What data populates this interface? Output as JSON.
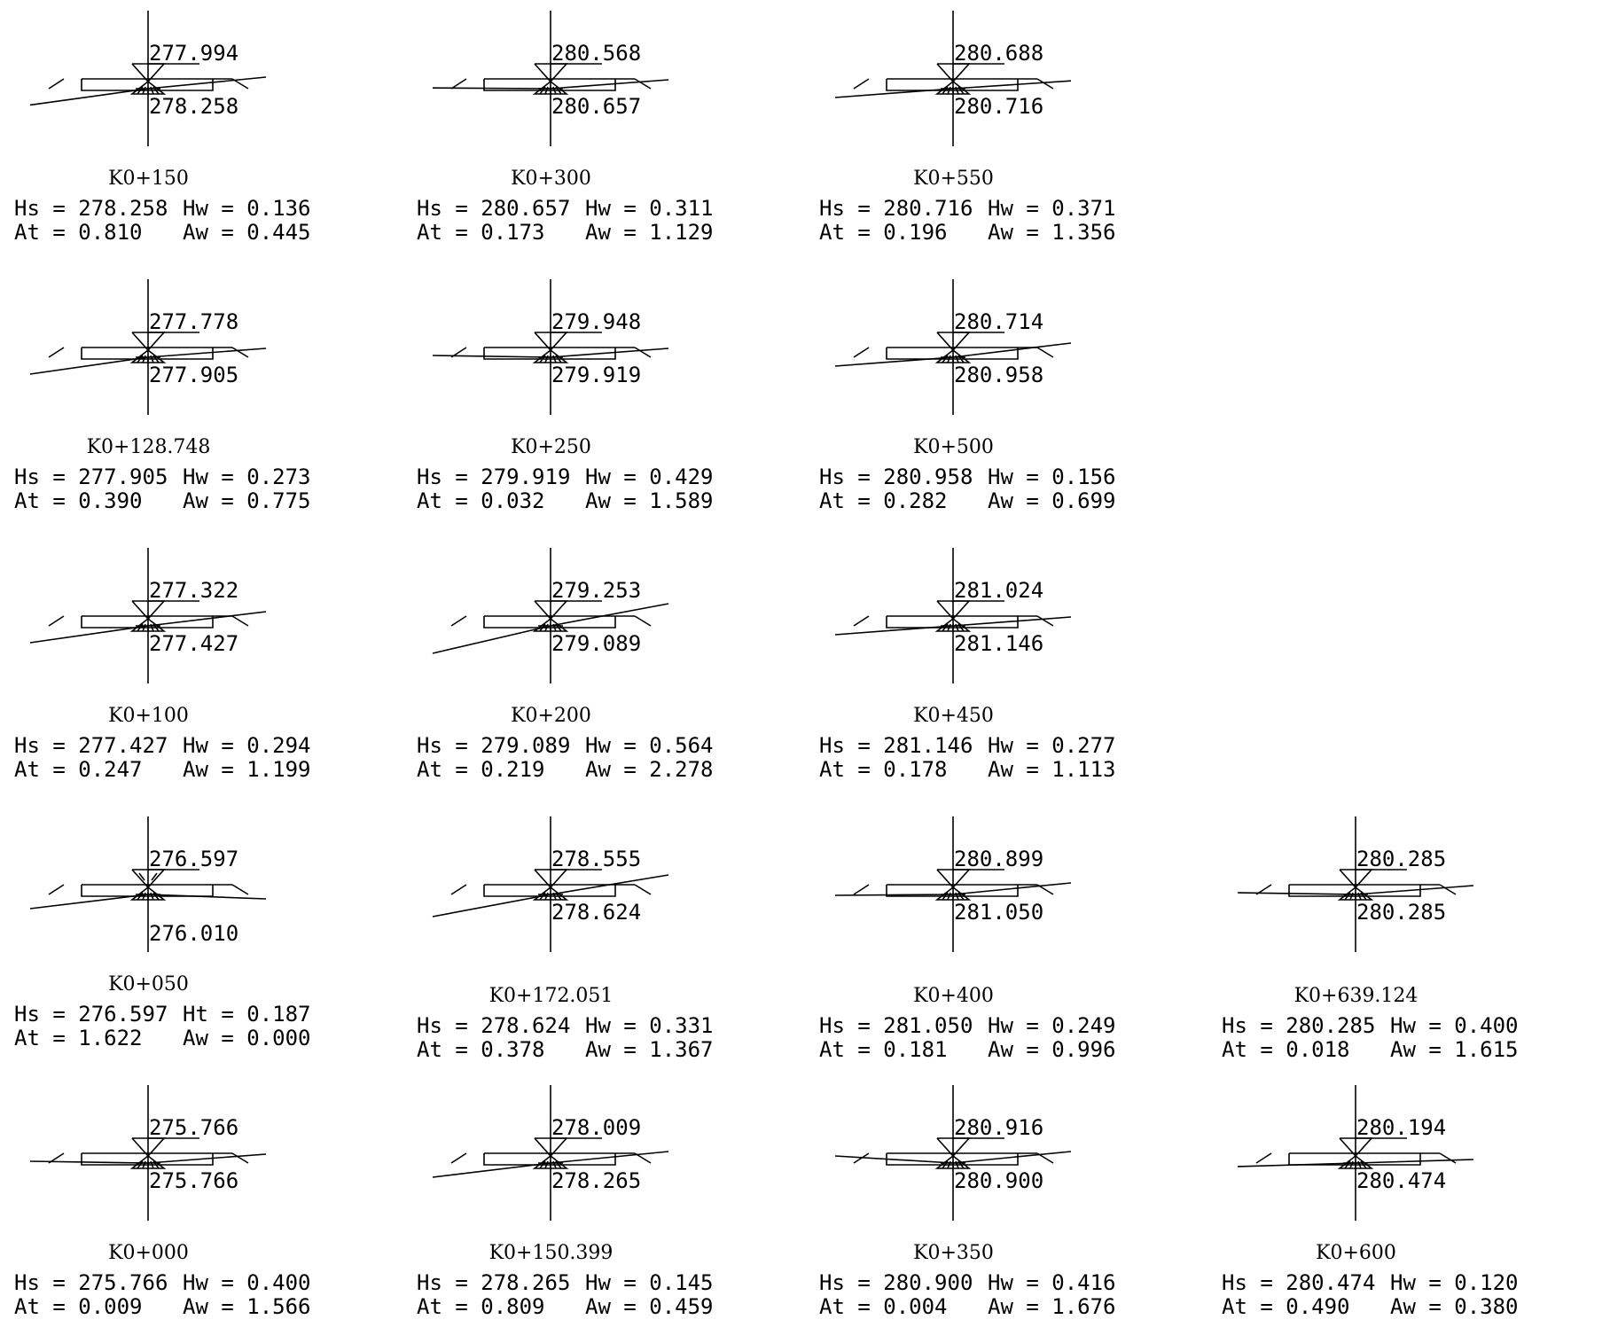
{
  "sections": [
    {
      "id": "k0-150",
      "station": "K0+150",
      "design_elev": "277.994",
      "ground_elev": "278.258",
      "left_label": "Hs = 278.258",
      "right_label": "Hw = 0.136",
      "left_label2": "At = 0.810",
      "right_label2": "Aw = 0.445",
      "ground_left": -0.34,
      "ground_right": 0.05,
      "fill_above": false
    },
    {
      "id": "k0-300",
      "station": "K0+300",
      "design_elev": "280.568",
      "ground_elev": "280.657",
      "left_label": "Hs = 280.657",
      "right_label": "Hw = 0.311",
      "left_label2": "At = 0.173",
      "right_label2": "Aw = 1.129",
      "ground_left": -0.02,
      "ground_right": 0.0,
      "fill_above": false
    },
    {
      "id": "k0-550",
      "station": "K0+550",
      "design_elev": "280.688",
      "ground_elev": "280.716",
      "left_label": "Hs = 280.716",
      "right_label": "Hw = 0.371",
      "left_label2": "At = 0.196",
      "right_label2": "Aw = 1.356",
      "ground_left": -0.2,
      "ground_right": -0.02,
      "fill_above": false
    },
    {
      "id": "k0-128-748",
      "station": "K0+128.748",
      "design_elev": "277.778",
      "ground_elev": "277.905",
      "left_label": "Hs = 277.905",
      "right_label": "Hw = 0.273",
      "left_label2": "At = 0.390",
      "right_label2": "Aw = 0.775",
      "ground_left": -0.35,
      "ground_right": 0.0,
      "fill_above": false
    },
    {
      "id": "k0-250",
      "station": "K0+250",
      "design_elev": "279.948",
      "ground_elev": "279.919",
      "left_label": "Hs = 279.919",
      "right_label": "Hw = 0.429",
      "left_label2": "At = 0.032",
      "right_label2": "Aw = 1.589",
      "ground_left": 0.0,
      "ground_right": 0.0,
      "fill_above": false
    },
    {
      "id": "k0-500",
      "station": "K0+500",
      "design_elev": "280.714",
      "ground_elev": "280.958",
      "left_label": "Hs = 280.958",
      "right_label": "Hw = 0.156",
      "left_label2": "At = 0.282",
      "right_label2": "Aw = 0.699",
      "ground_left": -0.2,
      "ground_right": 0.1,
      "fill_above": false
    },
    {
      "id": "k0-100",
      "station": "K0+100",
      "design_elev": "277.322",
      "ground_elev": "277.427",
      "left_label": "Hs = 277.427",
      "right_label": "Hw = 0.294",
      "left_label2": "At = 0.247",
      "right_label2": "Aw = 1.199",
      "ground_left": -0.35,
      "ground_right": 0.1,
      "fill_above": false
    },
    {
      "id": "k0-200",
      "station": "K0+200",
      "design_elev": "279.253",
      "ground_elev": "279.089",
      "left_label": "Hs = 279.089",
      "right_label": "Hw = 0.564",
      "left_label2": "At = 0.219",
      "right_label2": "Aw = 2.278",
      "ground_left": -0.55,
      "ground_right": 0.25,
      "fill_above": false
    },
    {
      "id": "k0-450",
      "station": "K0+450",
      "design_elev": "281.024",
      "ground_elev": "281.146",
      "left_label": "Hs = 281.146",
      "right_label": "Hw = 0.277",
      "left_label2": "At = 0.178",
      "right_label2": "Aw = 1.113",
      "ground_left": -0.2,
      "ground_right": 0.0,
      "fill_above": false
    },
    {
      "id": "k0-050",
      "station": "K0+050",
      "design_elev": "276.597",
      "ground_elev": "276.010",
      "left_label": "Hs = 276.597",
      "right_label": "Ht = 0.187",
      "left_label2": "At = 1.622",
      "right_label2": "Aw = 0.000",
      "ground_left": -0.3,
      "ground_right": -0.25,
      "fill_above": true
    },
    {
      "id": "k0-172-051",
      "station": "K0+172.051",
      "design_elev": "278.555",
      "ground_elev": "278.624",
      "left_label": "Hs = 278.624",
      "right_label": "Hw = 0.331",
      "left_label2": "At = 0.378",
      "right_label2": "Aw = 1.367",
      "ground_left": -0.45,
      "ground_right": 0.2,
      "fill_above": false
    },
    {
      "id": "k0-400",
      "station": "K0+400",
      "design_elev": "280.899",
      "ground_elev": "281.050",
      "left_label": "Hs = 281.050",
      "right_label": "Hw = 0.249",
      "left_label2": "At = 0.181",
      "right_label2": "Aw = 0.996",
      "ground_left": -0.05,
      "ground_right": 0.05,
      "fill_above": false
    },
    {
      "id": "k0-639-124",
      "station": "K0+639.124",
      "design_elev": "280.285",
      "ground_elev": "280.285",
      "left_label": "Hs = 280.285",
      "right_label": "Hw = 0.400",
      "left_label2": "At = 0.018",
      "right_label2": "Aw = 1.615",
      "ground_left": 0.0,
      "ground_right": 0.0,
      "fill_above": false
    },
    {
      "id": "k0-000",
      "station": "K0+000",
      "design_elev": "275.766",
      "ground_elev": "275.766",
      "left_label": "Hs = 275.766",
      "right_label": "Hw = 0.400",
      "left_label2": "At = 0.009",
      "right_label2": "Aw = 1.566",
      "ground_left": 0.0,
      "ground_right": 0.0,
      "fill_above": false
    },
    {
      "id": "k0-150-399",
      "station": "K0+150.399",
      "design_elev": "278.009",
      "ground_elev": "278.265",
      "left_label": "Hs = 278.265",
      "right_label": "Hw = 0.145",
      "left_label2": "At = 0.809",
      "right_label2": "Aw = 0.459",
      "ground_left": -0.3,
      "ground_right": 0.05,
      "fill_above": false
    },
    {
      "id": "k0-350",
      "station": "K0+350",
      "design_elev": "280.916",
      "ground_elev": "280.900",
      "left_label": "Hs = 280.900",
      "right_label": "Hw = 0.416",
      "left_label2": "At = 0.004",
      "right_label2": "Aw = 1.676",
      "ground_left": 0.1,
      "ground_right": 0.05,
      "fill_above": false
    },
    {
      "id": "k0-600",
      "station": "K0+600",
      "design_elev": "280.194",
      "ground_elev": "280.474",
      "left_label": "Hs = 280.474",
      "right_label": "Hw = 0.120",
      "left_label2": "At = 0.490",
      "right_label2": "Aw = 0.380",
      "ground_left": -0.1,
      "ground_right": -0.1,
      "fill_above": false
    }
  ],
  "colors": {
    "line": "#000000",
    "background": "#ffffff"
  }
}
